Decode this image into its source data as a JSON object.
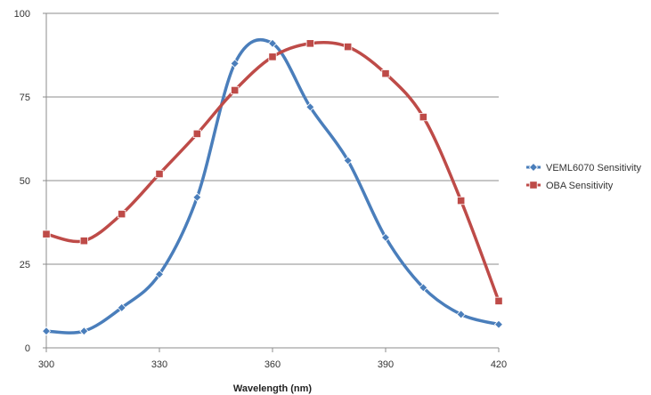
{
  "chart_data": {
    "type": "line",
    "xlabel": "Wavelength (nm)",
    "ylabel": "",
    "xlim": [
      300,
      420
    ],
    "ylim": [
      0,
      100
    ],
    "x_ticks": [
      300,
      330,
      360,
      390,
      420
    ],
    "y_ticks": [
      0,
      25,
      50,
      75,
      100
    ],
    "grid": "horizontal",
    "legend_position": "right",
    "smooth": true,
    "series": [
      {
        "name": "VEML6070 Sensitivity",
        "color": "#4a7ebb",
        "marker": "diamond",
        "x": [
          300,
          310,
          320,
          330,
          340,
          350,
          360,
          370,
          380,
          390,
          400,
          410,
          420
        ],
        "values": [
          5,
          5,
          12,
          22,
          45,
          85,
          91,
          72,
          56,
          33,
          18,
          10,
          7
        ]
      },
      {
        "name": "OBA Sensitivity",
        "color": "#be4b48",
        "marker": "square",
        "x": [
          300,
          310,
          320,
          330,
          340,
          350,
          360,
          370,
          380,
          390,
          400,
          410,
          420
        ],
        "values": [
          34,
          32,
          40,
          52,
          64,
          77,
          87,
          91,
          90,
          82,
          69,
          44,
          14
        ]
      }
    ]
  }
}
